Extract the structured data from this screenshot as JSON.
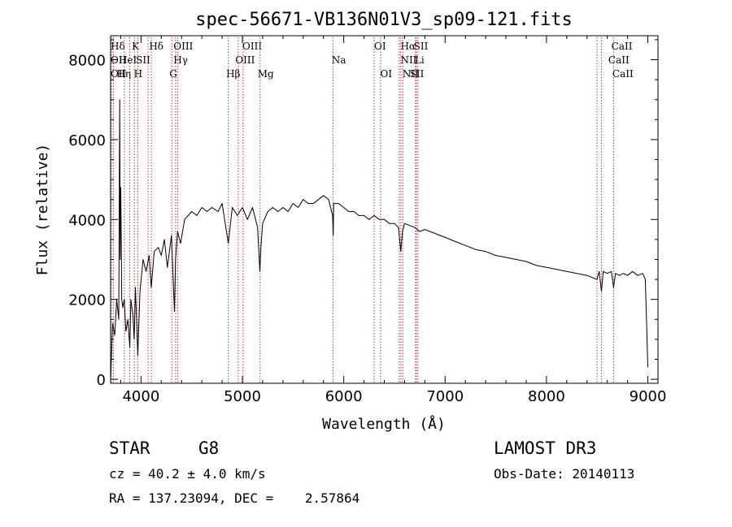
{
  "chart_data": {
    "type": "line",
    "title": "spec-56671-VB136N01V3_sp09-121.fits",
    "xlabel": "Wavelength (Å)",
    "ylabel": "Flux (relative)",
    "xlim": [
      3700,
      9100
    ],
    "ylim": [
      -100,
      8600
    ],
    "xticks": [
      {
        "value": 4000,
        "label": "4000"
      },
      {
        "value": 5000,
        "label": "5000"
      },
      {
        "value": 6000,
        "label": "6000"
      },
      {
        "value": 7000,
        "label": "7000"
      },
      {
        "value": 8000,
        "label": "8000"
      },
      {
        "value": 9000,
        "label": "9000"
      }
    ],
    "yticks": [
      {
        "value": 0,
        "label": "0"
      },
      {
        "value": 2000,
        "label": "2000"
      },
      {
        "value": 4000,
        "label": "4000"
      },
      {
        "value": 6000,
        "label": "6000"
      },
      {
        "value": 8000,
        "label": "8000"
      }
    ],
    "series": [
      {
        "name": "flux",
        "color": "#000000",
        "x": [
          3700,
          3720,
          3740,
          3760,
          3780,
          3790,
          3795,
          3800,
          3810,
          3820,
          3835,
          3850,
          3870,
          3889,
          3900,
          3920,
          3933,
          3945,
          3968,
          3990,
          4020,
          4050,
          4080,
          4101,
          4130,
          4170,
          4200,
          4230,
          4260,
          4300,
          4330,
          4340,
          4360,
          4390,
          4430,
          4500,
          4550,
          4600,
          4650,
          4700,
          4760,
          4800,
          4861,
          4900,
          4950,
          5000,
          5050,
          5100,
          5150,
          5172,
          5183,
          5200,
          5250,
          5300,
          5350,
          5400,
          5450,
          5500,
          5550,
          5600,
          5650,
          5700,
          5750,
          5800,
          5850,
          5890,
          5896,
          5900,
          5950,
          6000,
          6050,
          6100,
          6150,
          6200,
          6250,
          6300,
          6350,
          6400,
          6450,
          6500,
          6540,
          6563,
          6580,
          6600,
          6650,
          6700,
          6750,
          6800,
          6900,
          7000,
          7100,
          7200,
          7300,
          7400,
          7500,
          7600,
          7700,
          7800,
          7900,
          8000,
          8100,
          8200,
          8300,
          8400,
          8498,
          8520,
          8542,
          8560,
          8600,
          8640,
          8662,
          8680,
          8720,
          8760,
          8800,
          8850,
          8900,
          8950,
          8975,
          8990,
          9000
        ],
        "y": [
          0,
          1400,
          1100,
          2000,
          1500,
          7000,
          3000,
          4800,
          2000,
          1800,
          2000,
          1200,
          1500,
          800,
          2000,
          1600,
          1000,
          2300,
          600,
          2200,
          3000,
          2700,
          3100,
          2300,
          3200,
          3300,
          3100,
          3500,
          2800,
          3600,
          1700,
          3000,
          3700,
          3400,
          4000,
          4200,
          4100,
          4300,
          4200,
          4300,
          4200,
          4400,
          3400,
          4300,
          4100,
          4300,
          4000,
          4300,
          3800,
          2700,
          3300,
          3900,
          4200,
          4300,
          4200,
          4300,
          4200,
          4400,
          4300,
          4500,
          4400,
          4400,
          4500,
          4600,
          4500,
          4100,
          3600,
          4400,
          4400,
          4300,
          4200,
          4200,
          4100,
          4100,
          4000,
          4100,
          4000,
          4000,
          3900,
          3900,
          3800,
          3200,
          3700,
          3900,
          3850,
          3800,
          3700,
          3750,
          3650,
          3550,
          3450,
          3350,
          3250,
          3200,
          3100,
          3050,
          3000,
          2950,
          2850,
          2800,
          2750,
          2700,
          2650,
          2600,
          2500,
          2700,
          2200,
          2700,
          2650,
          2700,
          2300,
          2650,
          2600,
          2650,
          2600,
          2700,
          2600,
          2650,
          2500,
          1200,
          300
        ]
      }
    ],
    "spectral_lines": [
      {
        "label": "Hδ",
        "x": 3705,
        "label_x": 3700,
        "row": 1
      },
      {
        "label": "K",
        "x": 3934,
        "label_x": 3910,
        "row": 1
      },
      {
        "label": "Hδ",
        "x": 4102,
        "label_x": 4080,
        "row": 1
      },
      {
        "label": "OIII",
        "x": 4363,
        "label_x": 4320,
        "row": 1
      },
      {
        "label": "OIII",
        "x": 5007,
        "label_x": 5000,
        "row": 1
      },
      {
        "label": "OI",
        "x": 6300,
        "label_x": 6300,
        "row": 1
      },
      {
        "label": "Hα",
        "x": 6563,
        "label_x": 6560,
        "row": 1
      },
      {
        "label": "SII",
        "x": 6716,
        "label_x": 6690,
        "row": 1
      },
      {
        "label": "CaII",
        "x": 8662,
        "label_x": 8640,
        "row": 1
      },
      {
        "label": "OII",
        "x": 3727,
        "label_x": 3700,
        "row": 2
      },
      {
        "label": "HeI",
        "x": 3889,
        "label_x": 3780,
        "row": 2
      },
      {
        "label": "SII",
        "x": 4069,
        "label_x": 3950,
        "row": 2
      },
      {
        "label": "Hγ",
        "x": 4341,
        "label_x": 4320,
        "row": 2
      },
      {
        "label": "OIII",
        "x": 4959,
        "label_x": 4930,
        "row": 2
      },
      {
        "label": "Na",
        "x": 5893,
        "label_x": 5880,
        "row": 2
      },
      {
        "label": "NII",
        "x": 6548,
        "label_x": 6560,
        "row": 2
      },
      {
        "label": "Li",
        "x": 6708,
        "label_x": 6700,
        "row": 2
      },
      {
        "label": "CaII",
        "x": 8542,
        "label_x": 8610,
        "row": 2
      },
      {
        "label": "OII",
        "x": 3727,
        "label_x": 3700,
        "row": 3
      },
      {
        "label": "Hη",
        "x": 3835,
        "label_x": 3760,
        "row": 3
      },
      {
        "label": "H",
        "x": 3968,
        "label_x": 3930,
        "row": 3
      },
      {
        "label": "G",
        "x": 4304,
        "label_x": 4280,
        "row": 3
      },
      {
        "label": "Hβ",
        "x": 4861,
        "label_x": 4840,
        "row": 3
      },
      {
        "label": "Mg",
        "x": 5175,
        "label_x": 5150,
        "row": 3
      },
      {
        "label": "OI",
        "x": 6363,
        "label_x": 6360,
        "row": 3
      },
      {
        "label": "NII",
        "x": 6583,
        "label_x": 6580,
        "row": 3
      },
      {
        "label": "SII",
        "x": 6731,
        "label_x": 6650,
        "row": 3
      },
      {
        "label": "CaII",
        "x": 8498,
        "label_x": 8650,
        "row": 3
      }
    ]
  },
  "info": {
    "object_class": "STAR",
    "subclass": "G8",
    "survey": "LAMOST DR3",
    "cz": "cz = 40.2 ± 4.0 km/s",
    "obs_date": "Obs-Date: 20140113",
    "coords": "RA = 137.23094, DEC =    2.57864"
  }
}
